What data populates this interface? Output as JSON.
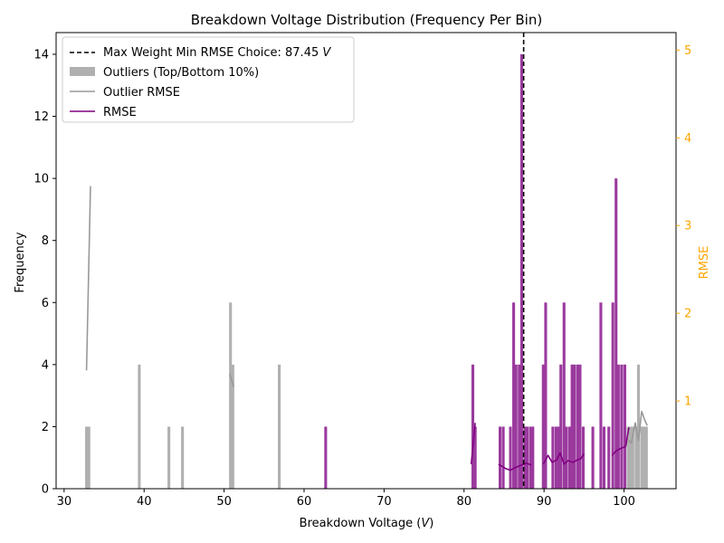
{
  "chart_data": {
    "type": "bar",
    "title": "Breakdown Voltage Distribution (Frequency Per Bin)",
    "xlabel": "Breakdown Voltage (",
    "xlabel_var": "V",
    "xlabel_end": ")",
    "ylabel": "Frequency",
    "y2label": "RMSE",
    "xlim": [
      29,
      106.5
    ],
    "ylim": [
      0,
      14.7
    ],
    "y2lim": [
      0,
      5.2
    ],
    "xticks": [
      30,
      40,
      50,
      60,
      70,
      80,
      90,
      100
    ],
    "yticks": [
      0,
      2,
      4,
      6,
      8,
      10,
      12,
      14
    ],
    "y2ticks": [
      1,
      2,
      3,
      4,
      5
    ],
    "bin_width": 0.35,
    "legend_position": "upper-left",
    "colors": {
      "rmse": "#800080",
      "main_bar": "#9b3a9e",
      "outlier_bar": "#b0b0b0",
      "outlier_line": "#999999",
      "vline": "#000000",
      "y2_axis": "#ffa500"
    },
    "vline": {
      "x": 87.45,
      "label_prefix": "Max Weight Min RMSE Choice: 87.45 ",
      "label_var": "V"
    },
    "legend": {
      "outlier_bars": "Outliers (Top/Bottom 10%)",
      "outlier_rmse": "Outlier RMSE",
      "rmse": "RMSE"
    },
    "outlier_bars": [
      {
        "x": 32.8,
        "y": 2
      },
      {
        "x": 33.1,
        "y": 2
      },
      {
        "x": 39.4,
        "y": 4
      },
      {
        "x": 43.1,
        "y": 2
      },
      {
        "x": 44.8,
        "y": 2
      },
      {
        "x": 50.8,
        "y": 6
      },
      {
        "x": 51.1,
        "y": 4
      },
      {
        "x": 56.9,
        "y": 4
      },
      {
        "x": 100.5,
        "y": 2
      },
      {
        "x": 100.8,
        "y": 2
      },
      {
        "x": 101.1,
        "y": 2
      },
      {
        "x": 101.5,
        "y": 2
      },
      {
        "x": 101.8,
        "y": 4
      },
      {
        "x": 102.2,
        "y": 2
      },
      {
        "x": 102.5,
        "y": 2
      },
      {
        "x": 102.8,
        "y": 2
      }
    ],
    "main_bars": [
      {
        "x": 62.7,
        "y": 2
      },
      {
        "x": 81.1,
        "y": 4
      },
      {
        "x": 81.4,
        "y": 2
      },
      {
        "x": 84.5,
        "y": 2
      },
      {
        "x": 84.9,
        "y": 2
      },
      {
        "x": 85.8,
        "y": 2
      },
      {
        "x": 86.2,
        "y": 6
      },
      {
        "x": 86.5,
        "y": 4
      },
      {
        "x": 86.9,
        "y": 4
      },
      {
        "x": 87.2,
        "y": 14
      },
      {
        "x": 87.6,
        "y": 2
      },
      {
        "x": 87.9,
        "y": 2
      },
      {
        "x": 88.3,
        "y": 2
      },
      {
        "x": 88.6,
        "y": 2
      },
      {
        "x": 89.9,
        "y": 4
      },
      {
        "x": 90.2,
        "y": 6
      },
      {
        "x": 91.1,
        "y": 2
      },
      {
        "x": 91.5,
        "y": 2
      },
      {
        "x": 91.8,
        "y": 2
      },
      {
        "x": 92.1,
        "y": 4
      },
      {
        "x": 92.5,
        "y": 6
      },
      {
        "x": 92.8,
        "y": 2
      },
      {
        "x": 93.2,
        "y": 2
      },
      {
        "x": 93.5,
        "y": 4
      },
      {
        "x": 93.8,
        "y": 4
      },
      {
        "x": 94.2,
        "y": 4
      },
      {
        "x": 94.5,
        "y": 4
      },
      {
        "x": 94.9,
        "y": 2
      },
      {
        "x": 96.1,
        "y": 2
      },
      {
        "x": 97.1,
        "y": 6
      },
      {
        "x": 97.5,
        "y": 2
      },
      {
        "x": 98.1,
        "y": 2
      },
      {
        "x": 98.6,
        "y": 6
      },
      {
        "x": 99.0,
        "y": 10
      },
      {
        "x": 99.3,
        "y": 4
      },
      {
        "x": 99.7,
        "y": 4
      },
      {
        "x": 100.1,
        "y": 4
      }
    ],
    "rmse_segments": [
      [
        [
          80.9,
          0.28
        ],
        [
          81.4,
          0.75
        ]
      ],
      [
        [
          84.3,
          0.28
        ],
        [
          85.2,
          0.23
        ],
        [
          85.8,
          0.21
        ],
        [
          86.4,
          0.24
        ],
        [
          87.2,
          0.27
        ],
        [
          87.8,
          0.29
        ],
        [
          88.4,
          0.27
        ]
      ],
      [
        [
          89.9,
          0.28
        ],
        [
          90.5,
          0.38
        ],
        [
          91.0,
          0.3
        ],
        [
          91.6,
          0.33
        ],
        [
          92.0,
          0.41
        ],
        [
          92.5,
          0.28
        ],
        [
          93.0,
          0.32
        ],
        [
          93.6,
          0.3
        ],
        [
          94.2,
          0.33
        ],
        [
          94.6,
          0.34
        ],
        [
          95.0,
          0.4
        ]
      ],
      [
        [
          98.5,
          0.38
        ],
        [
          99.0,
          0.43
        ],
        [
          99.6,
          0.46
        ],
        [
          100.2,
          0.48
        ],
        [
          100.6,
          0.7
        ]
      ]
    ],
    "outlier_rmse_segments": [
      [
        [
          32.8,
          1.35
        ],
        [
          33.3,
          3.45
        ]
      ],
      [
        [
          50.7,
          1.31
        ],
        [
          51.2,
          1.16
        ]
      ],
      [
        [
          100.6,
          0.55
        ],
        [
          100.9,
          0.52
        ],
        [
          101.4,
          0.75
        ],
        [
          101.8,
          0.55
        ],
        [
          102.2,
          0.88
        ],
        [
          102.6,
          0.78
        ],
        [
          102.9,
          0.72
        ]
      ]
    ]
  }
}
